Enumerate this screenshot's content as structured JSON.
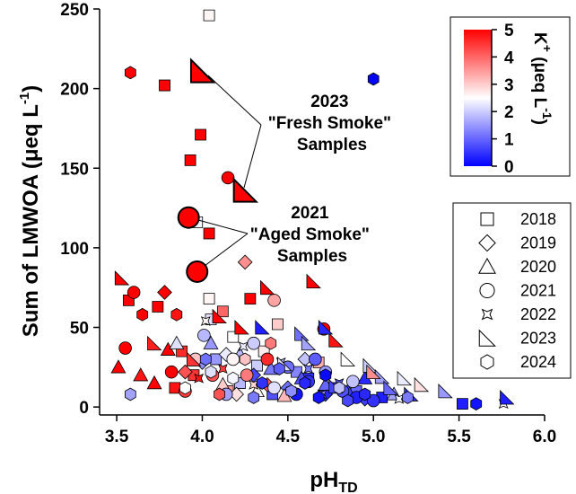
{
  "chart_data": {
    "type": "scatter",
    "xlabel": "pH",
    "xlabel_sub": "TD",
    "ylabel": "Sum of LMWOA (μeq L",
    "ylabel_sup": "-1",
    "ylabel_end": ")",
    "xlim": [
      3.4,
      6.0
    ],
    "ylim": [
      -5,
      250
    ],
    "x_ticks": [
      "3.5",
      "4.0",
      "4.5",
      "5.0",
      "5.5",
      "6.0"
    ],
    "y_ticks": [
      "0",
      "50",
      "100",
      "150",
      "200",
      "250"
    ],
    "grid": false,
    "colorbar": {
      "label": "K",
      "label_sup": "+",
      "label_units": " (μeq L",
      "label_units_sup": "-1",
      "label_units_end": ")",
      "min": 0,
      "max": 5,
      "ticks": [
        "0",
        "1",
        "2",
        "3",
        "4",
        "5"
      ],
      "colors": {
        "low": "#0000ff",
        "mid": "#ffffff",
        "high": "#ff0000"
      },
      "placement": "top-right"
    },
    "legend": {
      "placement": "right",
      "entries": [
        {
          "label": "2018",
          "marker": "square"
        },
        {
          "label": "2019",
          "marker": "diamond"
        },
        {
          "label": "2020",
          "marker": "triangle"
        },
        {
          "label": "2021",
          "marker": "circle"
        },
        {
          "label": "2022",
          "marker": "star"
        },
        {
          "label": "2023",
          "marker": "right-triangle"
        },
        {
          "label": "2024",
          "marker": "hexagon"
        }
      ]
    },
    "annotations": [
      {
        "lines": [
          "2023",
          "\"Fresh Smoke\"",
          "Samples"
        ]
      },
      {
        "lines": [
          "2021",
          "\"Aged Smoke\"",
          "Samples"
        ]
      }
    ],
    "highlighted_points": [
      {
        "year": "2023",
        "marker": "right-triangle",
        "x": 4.0,
        "y": 211,
        "k": 5
      },
      {
        "year": "2023",
        "marker": "right-triangle",
        "x": 4.25,
        "y": 136,
        "k": 5
      },
      {
        "year": "2021",
        "marker": "circle",
        "x": 3.92,
        "y": 119,
        "k": 5
      },
      {
        "year": "2021",
        "marker": "circle",
        "x": 3.97,
        "y": 85,
        "k": 5
      }
    ],
    "series": [
      {
        "name": "2018",
        "marker": "square",
        "points": [
          [
            4.04,
            246,
            2.6
          ],
          [
            3.78,
            202,
            5
          ],
          [
            3.99,
            171,
            5
          ],
          [
            3.93,
            155,
            5
          ],
          [
            4.04,
            109,
            5
          ],
          [
            3.97,
            116,
            2.4
          ],
          [
            4.04,
            68,
            2.6
          ],
          [
            3.57,
            67,
            5
          ],
          [
            3.74,
            63,
            5
          ],
          [
            4.28,
            68,
            5
          ],
          [
            4.12,
            60,
            4
          ],
          [
            4.05,
            55,
            2.2
          ],
          [
            4.44,
            52,
            3
          ],
          [
            4.18,
            44,
            2.5
          ],
          [
            3.88,
            35,
            4.6
          ],
          [
            4.08,
            30,
            1.5
          ],
          [
            4.32,
            26,
            2
          ],
          [
            4.62,
            18,
            0.5
          ],
          [
            4.75,
            12,
            0.6
          ],
          [
            4.9,
            10,
            1
          ],
          [
            3.95,
            20,
            4.5
          ],
          [
            4.22,
            15,
            1.8
          ],
          [
            4.55,
            22,
            1.3
          ],
          [
            4.41,
            8,
            0.8
          ],
          [
            5.05,
            6,
            0.3
          ],
          [
            4.15,
            10,
            3.5
          ],
          [
            3.84,
            12,
            4.8
          ],
          [
            4.36,
            35,
            2.7
          ],
          [
            4.68,
            28,
            3.3
          ],
          [
            5.52,
            2,
            0.3
          ]
        ]
      },
      {
        "name": "2019",
        "marker": "diamond",
        "points": [
          [
            4.25,
            91,
            3.6
          ],
          [
            3.78,
            72,
            5
          ],
          [
            4.0,
            28,
            1.4
          ],
          [
            4.14,
            33,
            2.3
          ],
          [
            4.3,
            20,
            0.7
          ],
          [
            4.5,
            12,
            1.1
          ],
          [
            4.72,
            8,
            0.4
          ],
          [
            3.9,
            22,
            4.2
          ],
          [
            4.2,
            8,
            2.8
          ],
          [
            4.6,
            30,
            1.9
          ],
          [
            4.95,
            5,
            0.6
          ],
          [
            4.38,
            14,
            4.1
          ]
        ]
      },
      {
        "name": "2020",
        "marker": "triangle",
        "points": [
          [
            3.51,
            25,
            5
          ],
          [
            3.72,
            15,
            5
          ],
          [
            3.8,
            36,
            5
          ],
          [
            4.05,
            40,
            1.5
          ],
          [
            4.22,
            33,
            1.8
          ],
          [
            4.4,
            24,
            1.2
          ],
          [
            4.58,
            18,
            0.8
          ],
          [
            4.85,
            10,
            0.6
          ],
          [
            3.64,
            20,
            4.8
          ],
          [
            4.12,
            14,
            3
          ],
          [
            4.32,
            10,
            2.6
          ],
          [
            4.72,
            14,
            1
          ],
          [
            5.12,
            8,
            1.6
          ],
          [
            3.85,
            40,
            2.2
          ],
          [
            4.95,
            18,
            0.4
          ],
          [
            4.48,
            7,
            3.2
          ]
        ]
      },
      {
        "name": "2021",
        "marker": "circle",
        "points": [
          [
            4.15,
            144,
            5
          ],
          [
            4.42,
            67,
            3.4
          ],
          [
            4.71,
            49,
            5
          ],
          [
            3.55,
            37,
            5
          ],
          [
            3.82,
            22,
            5
          ],
          [
            4.01,
            45,
            1.8
          ],
          [
            4.18,
            30,
            2.6
          ],
          [
            4.3,
            40,
            2
          ],
          [
            4.5,
            25,
            1.1
          ],
          [
            4.62,
            16,
            0.5
          ],
          [
            4.82,
            10,
            0.8
          ],
          [
            4.9,
            6,
            0.3
          ],
          [
            4.26,
            20,
            3.8
          ],
          [
            3.9,
            10,
            4.4
          ],
          [
            4.42,
            12,
            2.2
          ],
          [
            4.06,
            20,
            4.2
          ],
          [
            4.72,
            22,
            1.5
          ],
          [
            4.55,
            8,
            0.2
          ],
          [
            3.6,
            72,
            5
          ],
          [
            4.38,
            30,
            4.6
          ],
          [
            5.0,
            4,
            0.5
          ],
          [
            3.96,
            30,
            3.1
          ],
          [
            4.66,
            30,
            0.9
          ],
          [
            4.14,
            8,
            1.6
          ],
          [
            4.88,
            16,
            1.9
          ]
        ]
      },
      {
        "name": "2022",
        "marker": "star",
        "points": [
          [
            4.02,
            54,
            2.6
          ],
          [
            4.24,
            38,
            2.3
          ],
          [
            4.46,
            28,
            1.7
          ],
          [
            4.62,
            24,
            1.2
          ],
          [
            4.8,
            15,
            0.9
          ],
          [
            3.98,
            18,
            4.8
          ],
          [
            4.3,
            14,
            2.9
          ],
          [
            4.52,
            10,
            0.6
          ],
          [
            4.7,
            8,
            1.4
          ],
          [
            5.15,
            5,
            2.4
          ],
          [
            5.76,
            2,
            2.6
          ],
          [
            4.12,
            24,
            4.4
          ]
        ]
      },
      {
        "name": "2023",
        "marker": "right-triangle",
        "points": [
          [
            3.53,
            81,
            5
          ],
          [
            4.38,
            75,
            5
          ],
          [
            4.65,
            79,
            5
          ],
          [
            4.1,
            57,
            5
          ],
          [
            4.23,
            50,
            5
          ],
          [
            4.58,
            46,
            1.1
          ],
          [
            4.78,
            42,
            4.8
          ],
          [
            4.98,
            26,
            2
          ],
          [
            5.05,
            19,
            1.6
          ],
          [
            5.28,
            14,
            2.8
          ],
          [
            5.42,
            10,
            1.5
          ],
          [
            5.78,
            6,
            0.3
          ],
          [
            5.22,
            8,
            0.5
          ],
          [
            4.85,
            30,
            2.5
          ],
          [
            4.62,
            40,
            1.6
          ],
          [
            4.48,
            27,
            2.2
          ],
          [
            3.95,
            30,
            4.5
          ],
          [
            4.78,
            13,
            0.7
          ],
          [
            5.1,
            12,
            1
          ],
          [
            5.18,
            18,
            2.3
          ],
          [
            4.35,
            50,
            0.3
          ],
          [
            3.72,
            40,
            4.7
          ],
          [
            4.72,
            50,
            0.4
          ],
          [
            5.0,
            22,
            3.6
          ]
        ]
      },
      {
        "name": "2024",
        "marker": "hexagon",
        "points": [
          [
            5.0,
            206,
            0
          ],
          [
            3.58,
            210,
            5
          ],
          [
            3.65,
            58,
            5
          ],
          [
            3.85,
            58,
            4.8
          ],
          [
            4.02,
            30,
            1.1
          ],
          [
            4.18,
            18,
            2.4
          ],
          [
            4.35,
            15,
            0.5
          ],
          [
            4.52,
            10,
            1.4
          ],
          [
            4.68,
            6,
            0.2
          ],
          [
            4.85,
            4,
            0.7
          ],
          [
            5.6,
            2,
            0.2
          ],
          [
            3.58,
            8,
            1.6
          ],
          [
            4.05,
            22,
            2.2
          ],
          [
            4.25,
            30,
            3.1
          ],
          [
            4.45,
            24,
            0.9
          ],
          [
            4.6,
            15,
            0.4
          ],
          [
            4.8,
            12,
            1.9
          ],
          [
            4.95,
            8,
            0.4
          ],
          [
            4.1,
            8,
            4.2
          ],
          [
            4.3,
            6,
            1.2
          ],
          [
            3.9,
            12,
            2.5
          ],
          [
            4.72,
            20,
            0.1
          ],
          [
            4.4,
            40,
            3.8
          ],
          [
            5.2,
            6,
            1.2
          ]
        ]
      }
    ]
  }
}
